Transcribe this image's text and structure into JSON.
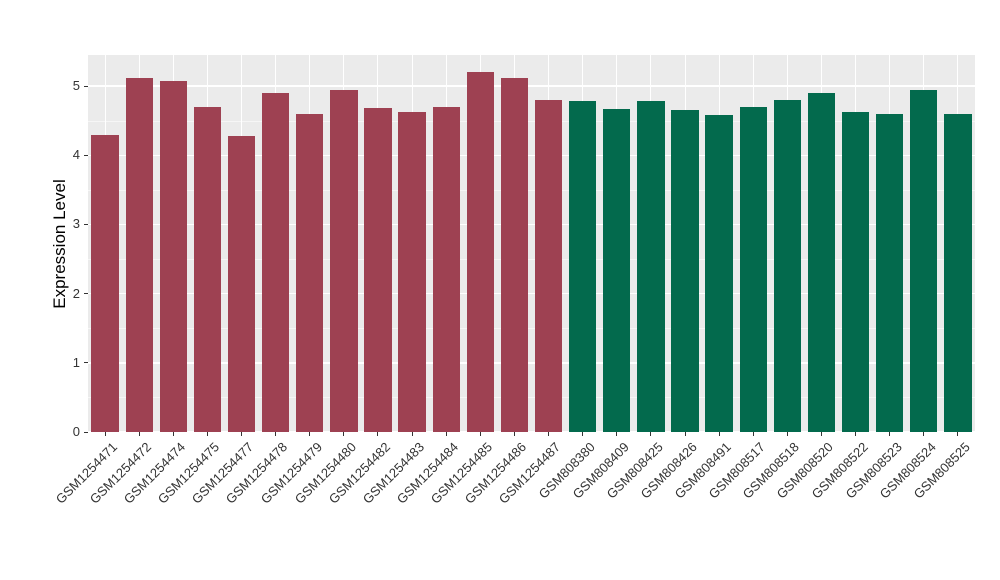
{
  "chart_data": {
    "type": "bar",
    "title": "",
    "xlabel": "",
    "ylabel": "Expression Level",
    "ylim": [
      0,
      5.45
    ],
    "yticks": [
      0,
      1,
      2,
      3,
      4,
      5
    ],
    "grid": true,
    "legend": "none",
    "panel_background": "#EBEBEB",
    "grid_color": "#FFFFFF",
    "categories": [
      "GSM1254471",
      "GSM1254472",
      "GSM1254474",
      "GSM1254475",
      "GSM1254477",
      "GSM1254478",
      "GSM1254479",
      "GSM1254480",
      "GSM1254482",
      "GSM1254483",
      "GSM1254484",
      "GSM1254485",
      "GSM1254486",
      "GSM1254487",
      "GSM808380",
      "GSM808409",
      "GSM808425",
      "GSM808426",
      "GSM808491",
      "GSM808517",
      "GSM808518",
      "GSM808520",
      "GSM808522",
      "GSM808523",
      "GSM808524",
      "GSM808525"
    ],
    "values": [
      4.3,
      5.12,
      5.07,
      4.7,
      4.28,
      4.9,
      4.6,
      4.94,
      4.68,
      4.63,
      4.7,
      5.2,
      5.12,
      4.8,
      4.78,
      4.67,
      4.78,
      4.65,
      4.58,
      4.7,
      4.8,
      4.9,
      4.63,
      4.6,
      4.94,
      4.6
    ],
    "bar_groups": [
      "group-red",
      "group-red",
      "group-red",
      "group-red",
      "group-red",
      "group-red",
      "group-red",
      "group-red",
      "group-red",
      "group-red",
      "group-red",
      "group-red",
      "group-red",
      "group-red",
      "group-green",
      "group-green",
      "group-green",
      "group-green",
      "group-green",
      "group-green",
      "group-green",
      "group-green",
      "group-green",
      "group-green",
      "group-green",
      "group-green"
    ],
    "group_colors": {
      "group-red": "#9E4152",
      "group-green": "#036A4D"
    }
  }
}
